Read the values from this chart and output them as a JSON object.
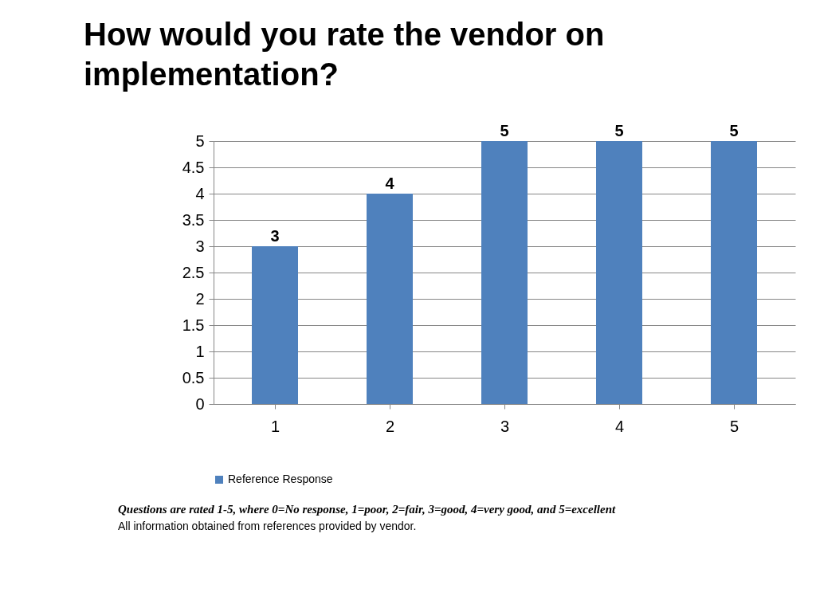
{
  "chart_data": {
    "type": "bar",
    "title": "How would you rate the vendor on implementation?",
    "categories": [
      "1",
      "2",
      "3",
      "4",
      "5"
    ],
    "series": [
      {
        "name": "Reference Response",
        "color": "#4f81bd",
        "values": [
          3,
          4,
          5,
          5,
          5
        ]
      }
    ],
    "ylim": [
      0,
      5
    ],
    "yticks": [
      0,
      0.5,
      1,
      1.5,
      2,
      2.5,
      3,
      3.5,
      4,
      4.5,
      5
    ],
    "grid": "y",
    "legend": "bottom",
    "data_labels": true,
    "annotations": [
      "Questions are rated 1-5, where 0=No response, 1=poor, 2=fair, 3=good, 4=very good, and 5=excellent",
      "All information obtained from references provided by vendor."
    ]
  }
}
